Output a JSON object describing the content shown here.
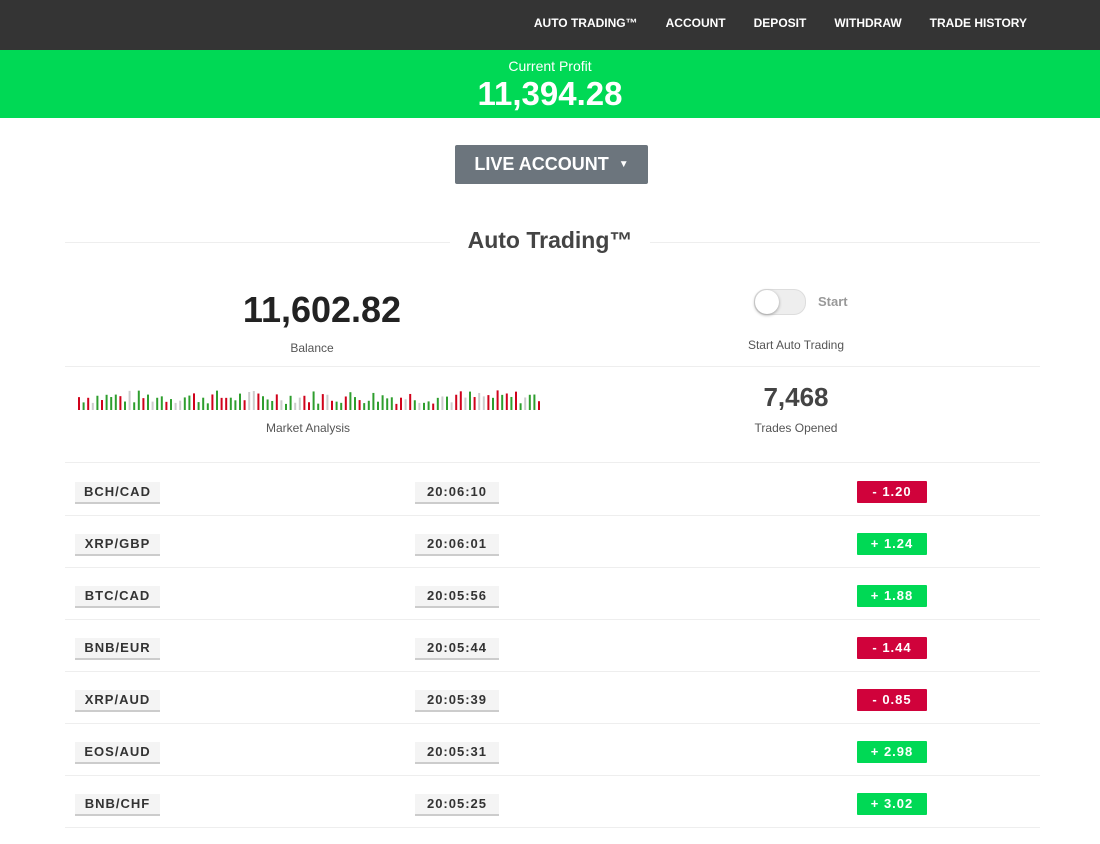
{
  "nav": {
    "items": [
      "AUTO TRADING™",
      "ACCOUNT",
      "DEPOSIT",
      "WITHDRAW",
      "TRADE HISTORY"
    ]
  },
  "profit": {
    "label": "Current Profit",
    "value": "11,394.28"
  },
  "account_button": "LIVE ACCOUNT",
  "section_title": "Auto Trading™",
  "balance": {
    "value": "11,602.82",
    "label": "Balance"
  },
  "toggle": {
    "label": "Start",
    "caption": "Start Auto Trading"
  },
  "market": {
    "label": "Market Analysis"
  },
  "trades": {
    "value": "7,468",
    "label": "Trades Opened"
  },
  "rows": [
    {
      "pair": "BCH/CAD",
      "time": "20:06:10",
      "change": "- 1.20",
      "direction": "down"
    },
    {
      "pair": "XRP/GBP",
      "time": "20:06:01",
      "change": "+ 1.24",
      "direction": "up"
    },
    {
      "pair": "BTC/CAD",
      "time": "20:05:56",
      "change": "+ 1.88",
      "direction": "up"
    },
    {
      "pair": "BNB/EUR",
      "time": "20:05:44",
      "change": "- 1.44",
      "direction": "down"
    },
    {
      "pair": "XRP/AUD",
      "time": "20:05:39",
      "change": "- 0.85",
      "direction": "down"
    },
    {
      "pair": "EOS/AUD",
      "time": "20:05:31",
      "change": "+ 2.98",
      "direction": "up"
    },
    {
      "pair": "BNB/CHF",
      "time": "20:05:25",
      "change": "+ 3.02",
      "direction": "up"
    }
  ]
}
